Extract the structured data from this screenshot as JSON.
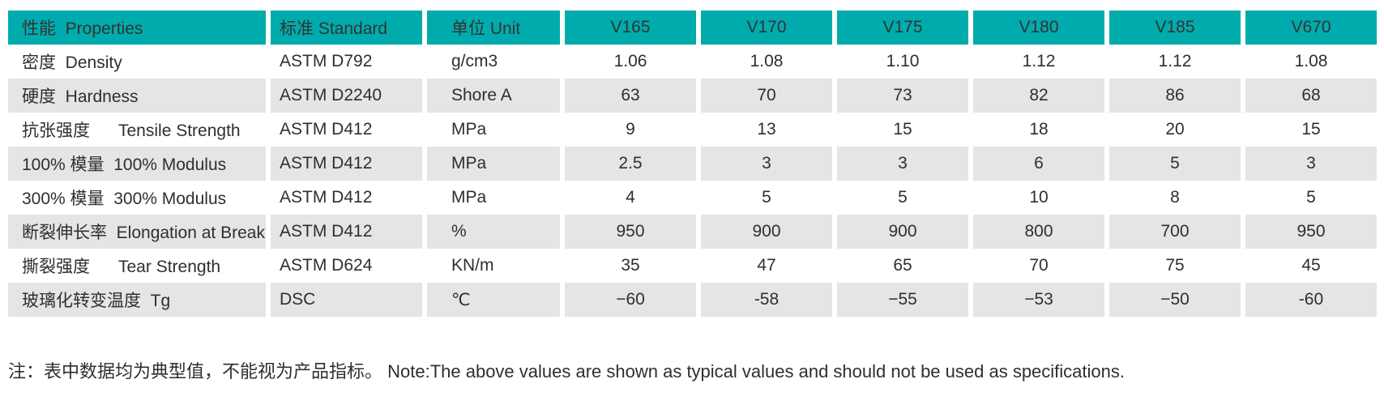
{
  "colors": {
    "header_bg": "#00ABAD",
    "row_alt_bg": "#E5E5E7",
    "text": "#2F2F2F"
  },
  "chart_data": {
    "type": "table",
    "title": "",
    "columns": [
      "性能  Properties",
      "标准 Standard",
      "单位 Unit",
      "V165",
      "V170",
      "V175",
      "V180",
      "V185",
      "V670"
    ],
    "rows": [
      [
        "密度  Density",
        "ASTM D792",
        "g/cm3",
        "1.06",
        "1.08",
        "1.10",
        "1.12",
        "1.12",
        "1.08"
      ],
      [
        "硬度  Hardness",
        "ASTM D2240",
        "Shore A",
        "63",
        "70",
        "73",
        "82",
        "86",
        "68"
      ],
      [
        "抗张强度      Tensile Strength",
        "ASTM D412",
        "MPa",
        "9",
        "13",
        "15",
        "18",
        "20",
        "15"
      ],
      [
        "100% 模量  100% Modulus",
        "ASTM D412",
        "MPa",
        "2.5",
        "3",
        "3",
        "6",
        "5",
        "3"
      ],
      [
        "300% 模量  300% Modulus",
        "ASTM D412",
        "MPa",
        "4",
        "5",
        "5",
        "10",
        "8",
        "5"
      ],
      [
        "断裂伸长率  Elongation at Break",
        "ASTM D412",
        "%",
        "950",
        "900",
        "900",
        "800",
        "700",
        "950"
      ],
      [
        "撕裂强度      Tear Strength",
        "ASTM D624",
        "KN/m",
        "35",
        "47",
        "65",
        "70",
        "75",
        "45"
      ],
      [
        "玻璃化转变温度  Tg",
        "DSC",
        "℃",
        "−60",
        "-58",
        "−55",
        "−53",
        "−50",
        "-60"
      ]
    ],
    "layout": {
      "striped": true,
      "stripe_pattern": "even-rows-gray",
      "header_style": "teal-blocks-with-white-gaps",
      "grid": false
    },
    "note": "注：表中数据均为典型值，不能视为产品指标。 Note:The above values are shown as typical values and should not be used as specifications."
  }
}
